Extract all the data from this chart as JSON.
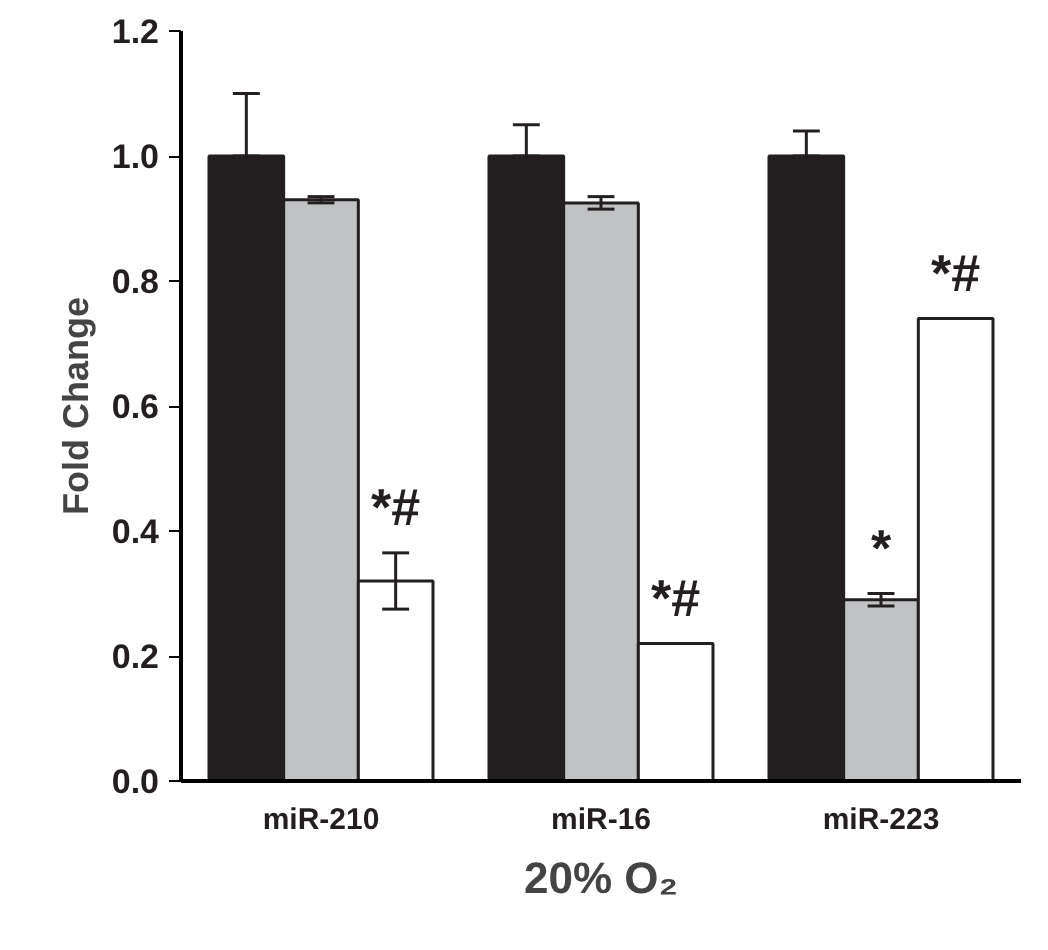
{
  "chart_data": {
    "type": "bar",
    "xlabel": "20% O₂",
    "ylabel": "Fold Change",
    "categories": [
      "miR-210",
      "miR-16",
      "miR-223"
    ],
    "series": [
      {
        "color": "#231f20",
        "values": [
          1.0,
          1.0,
          1.0
        ],
        "errors": [
          [
            1.0,
            1.1
          ],
          [
            1.0,
            1.05
          ],
          [
            1.0,
            1.04
          ]
        ]
      },
      {
        "color": "#c0c2c4",
        "values": [
          0.93,
          0.925,
          0.29
        ],
        "errors": [
          0.005,
          0.01,
          0.01
        ],
        "value_labels": [
          null,
          null,
          "*"
        ]
      },
      {
        "color": "#ffffff",
        "values": [
          0.32,
          0.22,
          0.74
        ],
        "errors": [
          0.045,
          null,
          null
        ],
        "value_labels": [
          "*#",
          "*#",
          "*#"
        ]
      }
    ],
    "ylim": [
      0,
      1.2
    ],
    "yticks": [
      {
        "value": 0,
        "label": "0.0"
      },
      0.2,
      0.4,
      0.6,
      0.8,
      {
        "value": 1,
        "label": "1.0"
      },
      1.2
    ],
    "grid": false
  }
}
